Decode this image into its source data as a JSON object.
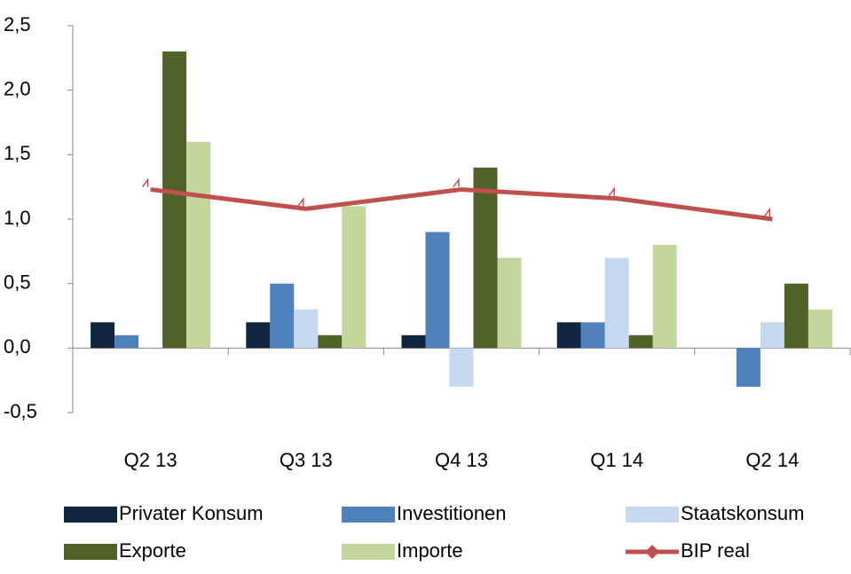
{
  "chart_data": {
    "type": "bar",
    "categories": [
      "Q2 13",
      "Q3 13",
      "Q4 13",
      "Q1 14",
      "Q2 14"
    ],
    "series": [
      {
        "name": "Privater Konsum",
        "color": "#10253f",
        "values": [
          0.2,
          0.2,
          0.1,
          0.2,
          0
        ]
      },
      {
        "name": "Investitionen",
        "color": "#4f81bd",
        "values": [
          0.1,
          0.5,
          0.9,
          0.2,
          -0.3
        ]
      },
      {
        "name": "Staatskonsum",
        "color": "#c6d9f1",
        "values": [
          0,
          0.3,
          -0.3,
          0.7,
          0.2
        ]
      },
      {
        "name": "Exporte",
        "color": "#4f6228",
        "values": [
          2.3,
          0.1,
          1.4,
          0.1,
          0.5
        ]
      },
      {
        "name": "Importe",
        "color": "#c3d69b",
        "values": [
          1.6,
          1.1,
          0.7,
          0.8,
          0.3
        ]
      },
      {
        "name": "BIP real",
        "color": "#c0504d",
        "type": "line",
        "values": [
          1.23,
          1.08,
          1.23,
          1.16,
          1.0
        ]
      }
    ],
    "ylim": [
      -0.5,
      2.5
    ],
    "yticks": [
      {
        "value": -0.5,
        "label": "-0,5"
      },
      {
        "value": 0,
        "label": "0,0"
      },
      {
        "value": 0.5,
        "label": "0,5"
      },
      {
        "value": 1,
        "label": "1,0"
      },
      {
        "value": 1.5,
        "label": "1,5"
      },
      {
        "value": 2,
        "label": "2,0"
      },
      {
        "value": 2.5,
        "label": "2,5"
      }
    ],
    "grid": false
  }
}
